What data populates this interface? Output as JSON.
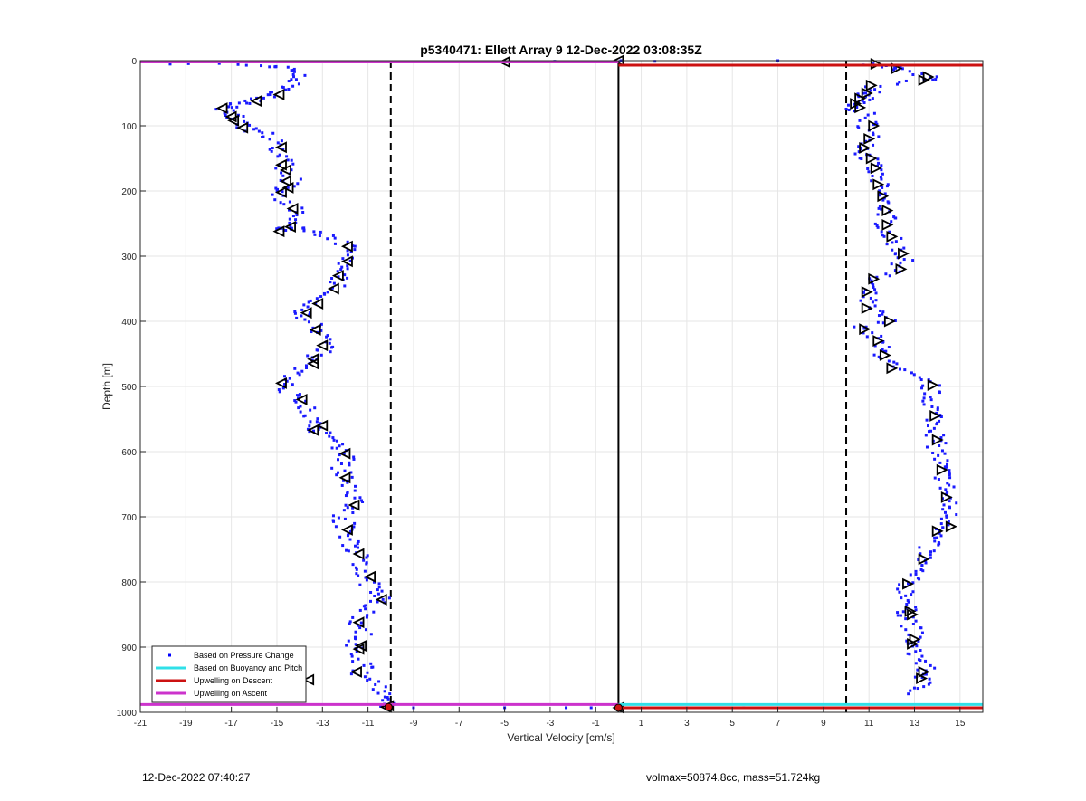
{
  "chart_data": {
    "type": "scatter",
    "title": "p5340471: Ellett Array 9 12-Dec-2022 03:08:35Z",
    "xlabel": "Vertical Velocity [cm/s]",
    "ylabel": "Depth [m]",
    "xlim": [
      -21,
      16
    ],
    "ylim": [
      0,
      1000
    ],
    "y_reversed": true,
    "grid": true,
    "x_ticks": [
      -21,
      -19,
      -17,
      -15,
      -13,
      -11,
      -9,
      -7,
      -5,
      -3,
      -1,
      1,
      3,
      5,
      7,
      9,
      11,
      13,
      15
    ],
    "y_ticks": [
      0,
      100,
      200,
      300,
      400,
      500,
      600,
      700,
      800,
      900,
      1000
    ],
    "legend": {
      "placement": "bottom-left",
      "entries": [
        {
          "label": "Based on Pressure Change",
          "color": "#0000ff",
          "style": "dot"
        },
        {
          "label": "Based on Buoyancy and Pitch",
          "color": "#30e0e8",
          "style": "line"
        },
        {
          "label": "Upwelling on Descent",
          "color": "#cc1111",
          "style": "line"
        },
        {
          "label": "Upwelling on Ascent",
          "color": "#cc33cc",
          "style": "line"
        }
      ]
    },
    "reference_lines": {
      "dashed_x": [
        -10,
        10
      ],
      "solid_x": 0,
      "solid_x_depth_range": [
        0,
        993
      ]
    },
    "upwelling_descent": {
      "color": "#cc1111",
      "points": [
        [
          0,
          7
        ],
        [
          16,
          7
        ],
        [
          0,
          993
        ],
        [
          16,
          993
        ]
      ]
    },
    "upwelling_ascent": {
      "color": "#cc33cc",
      "points": [
        [
          -21,
          2
        ],
        [
          0,
          2
        ],
        [
          -21,
          988
        ],
        [
          0,
          988
        ]
      ]
    },
    "buoyancy_pitch": {
      "color": "#30e0e8",
      "points": [
        [
          0,
          988
        ],
        [
          16,
          988
        ]
      ]
    },
    "descent_profile": [
      [
        11.2,
        5
      ],
      [
        11.9,
        10
      ],
      [
        12.3,
        14
      ],
      [
        13.6,
        24
      ],
      [
        13.5,
        30
      ],
      [
        11.3,
        38
      ],
      [
        11.1,
        50
      ],
      [
        10.6,
        52
      ],
      [
        10.8,
        58
      ],
      [
        10.4,
        65
      ],
      [
        10.2,
        70
      ],
      [
        10.8,
        82
      ],
      [
        11.0,
        96
      ],
      [
        10.9,
        108
      ],
      [
        11.2,
        124
      ],
      [
        10.9,
        132
      ],
      [
        10.8,
        142
      ],
      [
        11.0,
        150
      ],
      [
        11.2,
        168
      ],
      [
        11.4,
        188
      ],
      [
        11.5,
        208
      ],
      [
        11.7,
        226
      ],
      [
        11.8,
        238
      ],
      [
        11.7,
        252
      ],
      [
        11.9,
        270
      ],
      [
        12.4,
        292
      ],
      [
        12.5,
        305
      ],
      [
        12.4,
        320
      ],
      [
        11.2,
        332
      ],
      [
        10.9,
        352
      ],
      [
        10.9,
        378
      ],
      [
        11.8,
        398
      ],
      [
        10.8,
        410
      ],
      [
        11.3,
        428
      ],
      [
        11.6,
        448
      ],
      [
        11.9,
        470
      ],
      [
        13.7,
        497
      ],
      [
        13.7,
        510
      ],
      [
        13.8,
        530
      ],
      [
        13.9,
        545
      ],
      [
        14.0,
        565
      ],
      [
        13.9,
        585
      ],
      [
        14.1,
        610
      ],
      [
        14.2,
        630
      ],
      [
        14.4,
        650
      ],
      [
        14.4,
        670
      ],
      [
        14.5,
        690
      ],
      [
        14.5,
        705
      ],
      [
        14.6,
        715
      ],
      [
        14.0,
        725
      ],
      [
        13.6,
        745
      ],
      [
        13.4,
        765
      ],
      [
        13.0,
        785
      ],
      [
        12.6,
        805
      ],
      [
        12.8,
        825
      ],
      [
        12.6,
        845
      ],
      [
        12.8,
        855
      ],
      [
        12.9,
        875
      ],
      [
        13.0,
        890
      ],
      [
        12.8,
        900
      ],
      [
        13.3,
        920
      ],
      [
        13.5,
        938
      ],
      [
        13.4,
        948
      ],
      [
        13.2,
        962
      ],
      [
        13.1,
        975
      ]
    ],
    "ascent_profile": [
      [
        -10.1,
        992
      ],
      [
        -10.0,
        985
      ],
      [
        -10.3,
        975
      ],
      [
        -10.6,
        960
      ],
      [
        -11.3,
        945
      ],
      [
        -11.2,
        930
      ],
      [
        -11.4,
        905
      ],
      [
        -11.6,
        895
      ],
      [
        -11.2,
        880
      ],
      [
        -11.4,
        862
      ],
      [
        -11.1,
        845
      ],
      [
        -10.6,
        830
      ],
      [
        -10.4,
        822
      ],
      [
        -10.9,
        805
      ],
      [
        -11.0,
        790
      ],
      [
        -11.3,
        775
      ],
      [
        -11.4,
        757
      ],
      [
        -11.8,
        740
      ],
      [
        -11.9,
        720
      ],
      [
        -12.2,
        700
      ],
      [
        -11.6,
        682
      ],
      [
        -11.7,
        670
      ],
      [
        -11.9,
        655
      ],
      [
        -12.0,
        640
      ],
      [
        -12.2,
        625
      ],
      [
        -11.9,
        605
      ],
      [
        -12.4,
        590
      ],
      [
        -13.0,
        570
      ],
      [
        -13.5,
        565
      ],
      [
        -13.0,
        558
      ],
      [
        -13.6,
        540
      ],
      [
        -14.1,
        520
      ],
      [
        -14.5,
        505
      ],
      [
        -14.8,
        492
      ],
      [
        -14.3,
        478
      ],
      [
        -13.4,
        467
      ],
      [
        -13.4,
        457
      ],
      [
        -12.8,
        445
      ],
      [
        -13.0,
        435
      ],
      [
        -13.2,
        422
      ],
      [
        -13.3,
        410
      ],
      [
        -13.8,
        392
      ],
      [
        -14.0,
        385
      ],
      [
        -13.3,
        372
      ],
      [
        -13.1,
        362
      ],
      [
        -12.6,
        352
      ],
      [
        -12.3,
        340
      ],
      [
        -12.4,
        330
      ],
      [
        -11.9,
        310
      ],
      [
        -12.0,
        295
      ],
      [
        -11.9,
        283
      ],
      [
        -12.5,
        272
      ],
      [
        -13.2,
        265
      ],
      [
        -14.1,
        258
      ],
      [
        -14.6,
        255
      ],
      [
        -14.8,
        262
      ],
      [
        -14.3,
        242
      ],
      [
        -14.2,
        228
      ],
      [
        -14.6,
        215
      ],
      [
        -14.9,
        200
      ],
      [
        -14.5,
        192
      ],
      [
        -14.4,
        180
      ],
      [
        -14.6,
        168
      ],
      [
        -14.7,
        155
      ],
      [
        -14.9,
        140
      ],
      [
        -14.8,
        130
      ],
      [
        -15.3,
        118
      ],
      [
        -15.9,
        108
      ],
      [
        -16.4,
        102
      ],
      [
        -16.8,
        92
      ],
      [
        -16.9,
        84
      ],
      [
        -17.4,
        76
      ],
      [
        -17.1,
        70
      ],
      [
        -16.5,
        66
      ],
      [
        -16.0,
        62
      ],
      [
        -15.3,
        55
      ],
      [
        -14.8,
        48
      ],
      [
        -14.4,
        40
      ],
      [
        -14.1,
        30
      ],
      [
        -13.9,
        20
      ],
      [
        -14.5,
        12
      ],
      [
        -15.0,
        8
      ],
      [
        -17.0,
        6
      ],
      [
        -20.4,
        5
      ]
    ],
    "surface_transition": [
      [
        -5.0,
        2
      ],
      [
        -2.8,
        1
      ],
      [
        0.1,
        0
      ],
      [
        1.6,
        1
      ],
      [
        7.0,
        0
      ],
      [
        9.0,
        993
      ],
      [
        5.5,
        993
      ],
      [
        3.0,
        993
      ],
      [
        -1.2,
        993
      ],
      [
        -2.3,
        993
      ],
      [
        -5.0,
        993
      ],
      [
        -9.0,
        993
      ]
    ],
    "avg_markers_descent": [
      [
        11.3,
        5
      ],
      [
        12.2,
        12
      ],
      [
        13.6,
        25
      ],
      [
        13.4,
        30
      ],
      [
        11.1,
        38
      ],
      [
        10.9,
        50
      ],
      [
        10.6,
        58
      ],
      [
        10.4,
        66
      ],
      [
        10.6,
        72
      ],
      [
        11.2,
        100
      ],
      [
        11.0,
        120
      ],
      [
        10.8,
        134
      ],
      [
        11.1,
        150
      ],
      [
        11.3,
        165
      ],
      [
        11.4,
        190
      ],
      [
        11.6,
        208
      ],
      [
        11.8,
        230
      ],
      [
        11.8,
        252
      ],
      [
        12.0,
        270
      ],
      [
        12.5,
        296
      ],
      [
        12.4,
        320
      ],
      [
        11.2,
        335
      ],
      [
        10.9,
        355
      ],
      [
        10.9,
        380
      ],
      [
        11.9,
        400
      ],
      [
        10.8,
        412
      ],
      [
        11.4,
        430
      ],
      [
        11.7,
        452
      ],
      [
        12.0,
        472
      ],
      [
        13.8,
        498
      ],
      [
        13.9,
        545
      ],
      [
        14.0,
        582
      ],
      [
        14.2,
        628
      ],
      [
        14.4,
        670
      ],
      [
        14.6,
        715
      ],
      [
        14.0,
        722
      ],
      [
        13.4,
        765
      ],
      [
        12.7,
        803
      ],
      [
        12.8,
        845
      ],
      [
        12.9,
        850
      ],
      [
        13.0,
        888
      ],
      [
        12.9,
        895
      ],
      [
        13.4,
        938
      ],
      [
        13.3,
        948
      ]
    ],
    "avg_markers_ascent": [
      [
        -10.1,
        990
      ],
      [
        -13.6,
        950
      ],
      [
        -11.5,
        938
      ],
      [
        -11.4,
        903
      ],
      [
        -11.3,
        898
      ],
      [
        -11.4,
        862
      ],
      [
        -10.4,
        827
      ],
      [
        -10.9,
        792
      ],
      [
        -11.4,
        757
      ],
      [
        -11.9,
        720
      ],
      [
        -11.6,
        682
      ],
      [
        -12.0,
        640
      ],
      [
        -12.0,
        603
      ],
      [
        -13.0,
        560
      ],
      [
        -13.4,
        567
      ],
      [
        -13.9,
        520
      ],
      [
        -14.8,
        495
      ],
      [
        -13.4,
        465
      ],
      [
        -13.4,
        458
      ],
      [
        -13.0,
        437
      ],
      [
        -13.3,
        413
      ],
      [
        -13.7,
        387
      ],
      [
        -13.2,
        373
      ],
      [
        -12.5,
        350
      ],
      [
        -12.3,
        330
      ],
      [
        -11.9,
        308
      ],
      [
        -11.9,
        285
      ],
      [
        -14.4,
        255
      ],
      [
        -14.9,
        262
      ],
      [
        -14.3,
        227
      ],
      [
        -14.5,
        195
      ],
      [
        -14.8,
        202
      ],
      [
        -14.6,
        185
      ],
      [
        -14.6,
        168
      ],
      [
        -14.8,
        160
      ],
      [
        -14.8,
        133
      ],
      [
        -16.5,
        103
      ],
      [
        -16.9,
        92
      ],
      [
        -17.0,
        86
      ],
      [
        -17.4,
        73
      ],
      [
        -15.9,
        62
      ],
      [
        -14.9,
        52
      ],
      [
        -5.0,
        2
      ],
      [
        0.0,
        0
      ],
      [
        0.0,
        993
      ],
      [
        -10.2,
        992
      ]
    ]
  },
  "footer": {
    "left": "12-Dec-2022 07:40:27",
    "right": "volmax=50874.8cc, mass=51.724kg"
  }
}
